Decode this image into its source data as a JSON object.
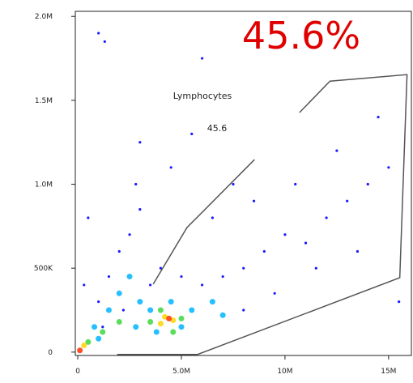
{
  "chart_data": {
    "type": "scatter",
    "annotations": {
      "big_percent": "45.6%",
      "gate_name": "Lymphocytes",
      "gate_percent": "45.6"
    },
    "xlim": [
      -120000,
      16100000
    ],
    "ylim": [
      -20000,
      2030000
    ],
    "xticks": [
      0,
      {
        "value": 5000000,
        "label": "5.0M"
      },
      {
        "value": 10000000,
        "label": "10M"
      },
      {
        "value": 15000000,
        "label": "15M"
      }
    ],
    "yticks": [
      0,
      {
        "value": 500000,
        "label": "500K"
      },
      {
        "value": 1000000,
        "label": "1.0M"
      },
      {
        "value": 1500000,
        "label": "1.5M"
      },
      {
        "value": 2000000,
        "label": "2.0M"
      }
    ],
    "gate": {
      "color": "#555555",
      "x": [
        3640000,
        5270000,
        8530000,
        null,
        10700000,
        12170000,
        15890000,
        15540000,
        5780000,
        1900000
      ],
      "y": [
        405000,
        742000,
        1147000,
        null,
        1427000,
        1614000,
        1653000,
        443000,
        -14000,
        -14000
      ]
    },
    "series": [
      {
        "color": "#1a1aff",
        "x": [
          1000000,
          1500000,
          2000000,
          2500000,
          3000000,
          1200000,
          2200000,
          3500000,
          4000000,
          5000000,
          6000000,
          7000000,
          8000000,
          9000000,
          10000000,
          11000000,
          12000000,
          13000000,
          14000000,
          15000000,
          6500000,
          8500000,
          4500000,
          3000000,
          5500000,
          7500000,
          9500000,
          11500000,
          13500000,
          15500000,
          1000000,
          1300000,
          6000000,
          14500000,
          12500000,
          2800000,
          500000,
          300000,
          10500000,
          8000000
        ],
        "y": [
          300000,
          450000,
          600000,
          700000,
          850000,
          150000,
          250000,
          400000,
          500000,
          450000,
          400000,
          450000,
          500000,
          600000,
          700000,
          650000,
          800000,
          900000,
          1000000,
          1100000,
          800000,
          900000,
          1100000,
          1250000,
          1300000,
          1000000,
          350000,
          500000,
          600000,
          300000,
          1900000,
          1850000,
          1750000,
          1400000,
          1200000,
          1000000,
          800000,
          400000,
          1000000,
          250000
        ]
      },
      {
        "color": "#00b4ff",
        "x": [
          800000,
          1500000,
          2000000,
          2500000,
          3000000,
          3500000,
          4500000,
          5500000,
          6500000,
          1000000,
          2800000,
          5000000,
          3800000,
          7000000
        ],
        "y": [
          150000,
          250000,
          350000,
          450000,
          300000,
          250000,
          300000,
          250000,
          300000,
          80000,
          150000,
          150000,
          120000,
          220000
        ]
      },
      {
        "color": "#3ed63e",
        "x": [
          500000,
          1200000,
          3500000,
          4000000,
          5000000,
          4600000,
          2000000
        ],
        "y": [
          60000,
          120000,
          180000,
          250000,
          200000,
          120000,
          180000
        ]
      },
      {
        "color": "#ffd400",
        "x": [
          4200000,
          4600000,
          300000,
          4000000
        ],
        "y": [
          210000,
          190000,
          40000,
          170000
        ]
      },
      {
        "color": "#ff3000",
        "x": [
          100000,
          4400000
        ],
        "y": [
          10000,
          200000
        ]
      }
    ]
  }
}
